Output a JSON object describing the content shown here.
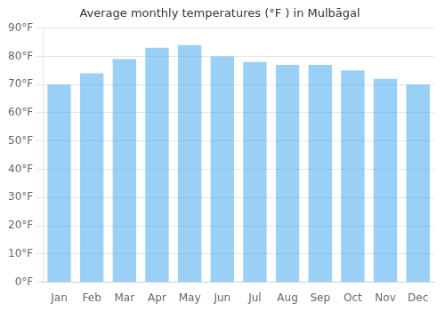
{
  "chart_data": {
    "type": "bar",
    "title": "Average monthly temperatures (°F ) in Mulbāgal",
    "categories": [
      "Jan",
      "Feb",
      "Mar",
      "Apr",
      "May",
      "Jun",
      "Jul",
      "Aug",
      "Sep",
      "Oct",
      "Nov",
      "Dec"
    ],
    "values": [
      70,
      74,
      79,
      83,
      84,
      80,
      78,
      77,
      77,
      75,
      72,
      70
    ],
    "ylim": [
      0,
      90
    ],
    "yticks": [
      {
        "value": 0,
        "label": "0°F"
      },
      {
        "value": 10,
        "label": "10°F"
      },
      {
        "value": 20,
        "label": "20°F"
      },
      {
        "value": 30,
        "label": "30°F"
      },
      {
        "value": 40,
        "label": "40°F"
      },
      {
        "value": 50,
        "label": "50°F"
      },
      {
        "value": 60,
        "label": "60°F"
      },
      {
        "value": 70,
        "label": "70°F"
      },
      {
        "value": 80,
        "label": "80°F"
      },
      {
        "value": 90,
        "label": "90°F"
      }
    ],
    "grid": true
  }
}
